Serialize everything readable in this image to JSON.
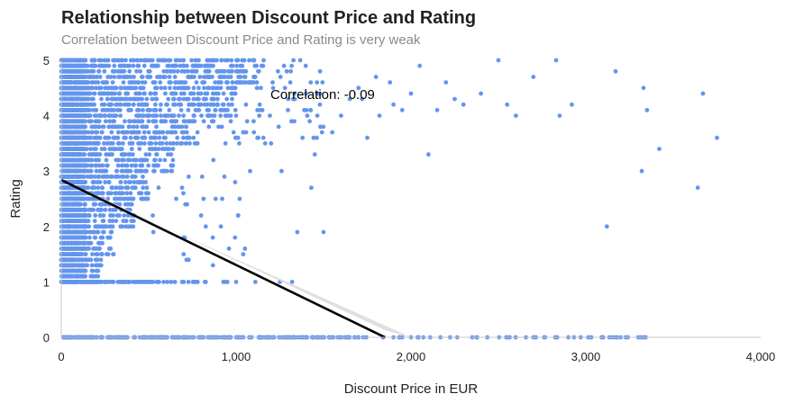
{
  "chart_data": {
    "type": "scatter",
    "title": "Relationship between Discount Price and Rating",
    "subtitle": "Correlation between Discount Price and Rating is very weak",
    "xlabel": "Discount Price in EUR",
    "ylabel": "Rating",
    "xlim": [
      0,
      4000
    ],
    "ylim": [
      0,
      5
    ],
    "x_ticks": [
      0,
      1000,
      2000,
      3000,
      4000
    ],
    "x_tick_labels": [
      "0",
      "1,000",
      "2,000",
      "3,000",
      "4,000"
    ],
    "y_ticks": [
      0,
      1,
      2,
      3,
      4,
      5
    ],
    "y_tick_labels": [
      "0",
      "1",
      "2",
      "3",
      "4",
      "5"
    ],
    "grid": false,
    "annotation": "Correlation: -0.09",
    "colors": {
      "points": "#6495ED",
      "regression_line": "#000000",
      "confidence_band": "#d9d9d9",
      "axis": "#c8c8c8"
    },
    "regression": {
      "intercept": 2.84,
      "slope": -0.001534,
      "x_range": [
        0,
        1852
      ],
      "ci_halfwidth_at_x0": 0.02,
      "ci_halfwidth_at_xmax": 0.13
    },
    "series": [
      {
        "points": [
          [
            2830,
            5.0
          ],
          [
            3170,
            4.8
          ],
          [
            2700,
            4.7
          ],
          [
            3330,
            4.5
          ],
          [
            3670,
            4.4
          ],
          [
            2550,
            4.2
          ],
          [
            2920,
            4.2
          ],
          [
            3350,
            4.1
          ],
          [
            2850,
            4.0
          ],
          [
            3750,
            3.6
          ],
          [
            3420,
            3.4
          ],
          [
            2100,
            3.3
          ],
          [
            3320,
            3.0
          ],
          [
            3640,
            2.7
          ],
          [
            3120,
            2.0
          ],
          [
            1350,
            1.9
          ],
          [
            1500,
            1.9
          ],
          [
            1430,
            2.7
          ],
          [
            1650,
            4.3
          ],
          [
            1700,
            4.5
          ],
          [
            1800,
            4.7
          ],
          [
            1900,
            4.2
          ],
          [
            2000,
            4.4
          ],
          [
            1750,
            3.6
          ],
          [
            1550,
            3.7
          ],
          [
            2300,
            4.2
          ],
          [
            2200,
            4.6
          ],
          [
            2400,
            4.4
          ],
          [
            2150,
            4.1
          ],
          [
            1600,
            4.0
          ],
          [
            1450,
            3.3
          ],
          [
            1720,
            4.3
          ],
          [
            2050,
            4.9
          ],
          [
            1950,
            4.1
          ],
          [
            1380,
            3.6
          ],
          [
            1880,
            4.6
          ],
          [
            2250,
            4.3
          ],
          [
            2500,
            5.0
          ],
          [
            2600,
            4.0
          ],
          [
            1820,
            4.0
          ],
          [
            1250,
            1.0
          ],
          [
            1320,
            1.0
          ],
          [
            1110,
            1.0
          ],
          [
            1000,
            1.0
          ],
          [
            950,
            1.0
          ],
          [
            2110,
            0.0
          ],
          [
            2550,
            0.0
          ],
          [
            2900,
            0.0
          ],
          [
            3240,
            0.0
          ],
          [
            3300,
            0.0
          ],
          [
            2000,
            0.0
          ],
          [
            2350,
            0.0
          ],
          [
            2700,
            0.0
          ],
          [
            1900,
            0.0
          ],
          [
            1700,
            0.0
          ],
          [
            1200,
            3.5
          ],
          [
            1260,
            3.0
          ],
          [
            1100,
            3.9
          ],
          [
            980,
            4.6
          ],
          [
            1040,
            3.7
          ],
          [
            1150,
            4.1
          ],
          [
            1310,
            4.6
          ],
          [
            1400,
            4.4
          ],
          [
            870,
            3.2
          ],
          [
            920,
            2.5
          ],
          [
            1020,
            2.5
          ],
          [
            1080,
            3.0
          ],
          [
            800,
            2.2
          ],
          [
            850,
            4.9
          ],
          [
            760,
            4.0
          ]
        ]
      }
    ]
  }
}
